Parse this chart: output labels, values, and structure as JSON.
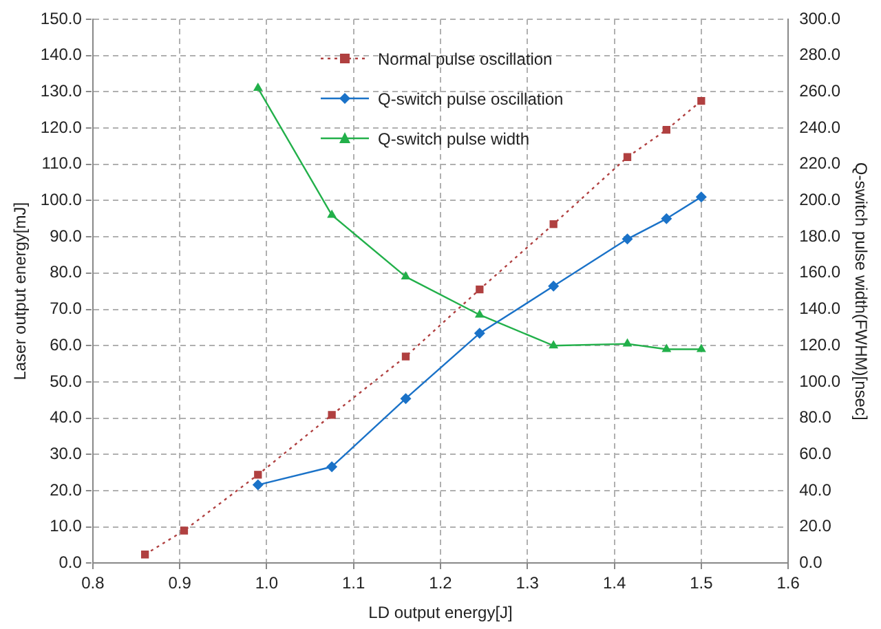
{
  "chart_data": {
    "type": "line",
    "xlabel": "LD output energy[J]",
    "ylabel": "Laser output energy[mJ]",
    "y2label": "Q-switch pulse width(FWHM)[nsec]",
    "xlim": [
      0.8,
      1.6
    ],
    "xticks": [
      {
        "value": 0.8,
        "label": "0.8"
      },
      {
        "value": 0.9,
        "label": "0.9"
      },
      {
        "value": 1,
        "label": "1.0"
      },
      {
        "value": 1.1,
        "label": "1.1"
      },
      {
        "value": 1.2,
        "label": "1.2"
      },
      {
        "value": 1.3,
        "label": "1.3"
      },
      {
        "value": 1.4,
        "label": "1.4"
      },
      {
        "value": 1.5,
        "label": "1.5"
      },
      {
        "value": 1.6,
        "label": "1.6"
      }
    ],
    "ylim": [
      0,
      150
    ],
    "yticks": [
      {
        "value": 0,
        "label": "0.0"
      },
      {
        "value": 10,
        "label": "10.0"
      },
      {
        "value": 20,
        "label": "20.0"
      },
      {
        "value": 30,
        "label": "30.0"
      },
      {
        "value": 40,
        "label": "40.0"
      },
      {
        "value": 50,
        "label": "50.0"
      },
      {
        "value": 60,
        "label": "60.0"
      },
      {
        "value": 70,
        "label": "70.0"
      },
      {
        "value": 80,
        "label": "80.0"
      },
      {
        "value": 90,
        "label": "90.0"
      },
      {
        "value": 100,
        "label": "100.0"
      },
      {
        "value": 110,
        "label": "110.0"
      },
      {
        "value": 120,
        "label": "120.0"
      },
      {
        "value": 130,
        "label": "130.0"
      },
      {
        "value": 140,
        "label": "140.0"
      },
      {
        "value": 150,
        "label": "150.0"
      }
    ],
    "y2lim": [
      0,
      300
    ],
    "y2ticks": [
      {
        "value": 0,
        "label": "0.0"
      },
      {
        "value": 20,
        "label": "20.0"
      },
      {
        "value": 40,
        "label": "40.0"
      },
      {
        "value": 60,
        "label": "60.0"
      },
      {
        "value": 80,
        "label": "80.0"
      },
      {
        "value": 100,
        "label": "100.0"
      },
      {
        "value": 120,
        "label": "120.0"
      },
      {
        "value": 140,
        "label": "140.0"
      },
      {
        "value": 160,
        "label": "160.0"
      },
      {
        "value": 180,
        "label": "180.0"
      },
      {
        "value": 200,
        "label": "200.0"
      },
      {
        "value": 220,
        "label": "220.0"
      },
      {
        "value": 240,
        "label": "240.0"
      },
      {
        "value": 260,
        "label": "260.0"
      },
      {
        "value": 280,
        "label": "280.0"
      },
      {
        "value": 300,
        "label": "300.0"
      }
    ],
    "grid": true,
    "legend": "top",
    "series": [
      {
        "name": "Normal pulse oscillation",
        "color": "#b04040",
        "marker": "square",
        "line_style": "dotted",
        "x": [
          0.86,
          0.905,
          0.99,
          1.075,
          1.16,
          1.245,
          1.33,
          1.415,
          1.46,
          1.5
        ],
        "values": [
          2.4,
          9.0,
          24.4,
          40.9,
          57,
          75.5,
          93.5,
          112,
          119.5,
          127.5
        ]
      },
      {
        "name": "Q-switch pulse oscillation",
        "color": "#1a72c8",
        "marker": "diamond",
        "line_style": "solid",
        "x": [
          0.99,
          1.075,
          1.16,
          1.245,
          1.33,
          1.415,
          1.46,
          1.5
        ],
        "values": [
          21.6,
          26.6,
          45.4,
          63.4,
          76.4,
          89.4,
          95,
          101
        ]
      },
      {
        "name": "Q-switch pulse width",
        "color": "#22b04a",
        "marker": "triangle",
        "line_style": "solid",
        "axis": "y2",
        "x": [
          0.99,
          1.075,
          1.16,
          1.245,
          1.33,
          1.415,
          1.46,
          1.5
        ],
        "values": [
          262,
          192,
          158,
          137,
          120,
          121,
          118,
          118
        ]
      }
    ]
  }
}
